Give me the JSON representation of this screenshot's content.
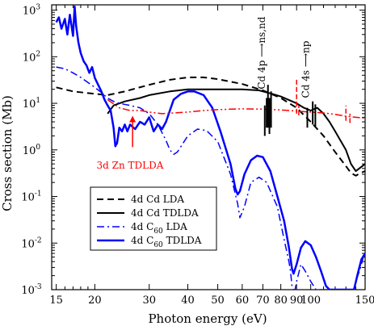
{
  "chart_data": {
    "type": "line",
    "xlabel": "Photon energy (eV)",
    "ylabel": "Cross section (Mb)",
    "xscale": "log",
    "yscale": "log",
    "xlim": [
      14.5,
      150
    ],
    "ylim": [
      0.001,
      1300
    ],
    "x_ticks": [
      {
        "v": 15,
        "label": "15"
      },
      {
        "v": 20,
        "label": "20"
      },
      {
        "v": 30,
        "label": "30"
      },
      {
        "v": 40,
        "label": "40"
      },
      {
        "v": 50,
        "label": "50"
      },
      {
        "v": 60,
        "label": "60"
      },
      {
        "v": 70,
        "label": "70"
      },
      {
        "v": 80,
        "label": "80"
      },
      {
        "v": 90,
        "label": "90"
      },
      {
        "v": 100,
        "label": "100"
      },
      {
        "v": 150,
        "label": "150"
      }
    ],
    "y_ticks": [
      {
        "v": 0.001,
        "base": "10",
        "exp": "-3"
      },
      {
        "v": 0.01,
        "base": "10",
        "exp": "-2"
      },
      {
        "v": 0.1,
        "base": "10",
        "exp": "-1"
      },
      {
        "v": 1,
        "base": "10",
        "exp": "0"
      },
      {
        "v": 10,
        "base": "10",
        "exp": "1"
      },
      {
        "v": 100,
        "base": "10",
        "exp": "2"
      },
      {
        "v": 1000,
        "base": "10",
        "exp": "3"
      }
    ],
    "grid": false,
    "legend_position": "lower-left",
    "legend": [
      {
        "series": "cd_lda",
        "sub": "",
        "pre": "4d Cd LDA",
        "post": ""
      },
      {
        "series": "cd_tdlda",
        "sub": "",
        "pre": "4d Cd TDLDA",
        "post": ""
      },
      {
        "series": "c60_lda",
        "pre": "4d C",
        "sub": "60",
        "post": " LDA"
      },
      {
        "series": "c60_tdlda",
        "pre": "4d C",
        "sub": "60",
        "post": " TDLDA"
      }
    ],
    "series": [
      {
        "id": "cd_lda",
        "color": "#000000",
        "style": "dashed",
        "width": 2,
        "points": [
          [
            15,
            22
          ],
          [
            17,
            18
          ],
          [
            20,
            16
          ],
          [
            22,
            15
          ],
          [
            25,
            18
          ],
          [
            30,
            25
          ],
          [
            35,
            32
          ],
          [
            40,
            36
          ],
          [
            45,
            36
          ],
          [
            50,
            33
          ],
          [
            60,
            26
          ],
          [
            70,
            19
          ],
          [
            80,
            13
          ],
          [
            90,
            8
          ],
          [
            100,
            4
          ],
          [
            110,
            2
          ],
          [
            120,
            0.9
          ],
          [
            130,
            0.45
          ],
          [
            135,
            0.32
          ],
          [
            140,
            0.28
          ],
          [
            145,
            0.32
          ],
          [
            150,
            0.35
          ]
        ]
      },
      {
        "id": "cd_tdlda",
        "color": "#000000",
        "style": "solid",
        "width": 2,
        "points": [
          [
            22,
            6
          ],
          [
            23,
            9
          ],
          [
            25,
            11
          ],
          [
            28,
            13
          ],
          [
            30,
            15
          ],
          [
            35,
            18
          ],
          [
            40,
            20
          ],
          [
            50,
            20
          ],
          [
            60,
            20
          ],
          [
            68,
            19
          ],
          [
            70,
            18
          ],
          [
            75,
            16
          ],
          [
            80,
            14
          ],
          [
            90,
            10
          ],
          [
            95,
            8
          ],
          [
            100,
            7
          ],
          [
            105,
            8
          ],
          [
            110,
            6
          ],
          [
            115,
            4
          ],
          [
            120,
            2.5
          ],
          [
            130,
            1
          ],
          [
            135,
            0.5
          ],
          [
            140,
            0.35
          ],
          [
            150,
            0.5
          ]
        ]
      },
      {
        "id": "c60_lda",
        "color": "#0000ff",
        "style": "dashdot",
        "width": 1.5,
        "points": [
          [
            15,
            60
          ],
          [
            16,
            55
          ],
          [
            17,
            45
          ],
          [
            18,
            36
          ],
          [
            19,
            28
          ],
          [
            20,
            22
          ],
          [
            21,
            17
          ],
          [
            22,
            13
          ],
          [
            23,
            11
          ],
          [
            24,
            10
          ],
          [
            26,
            9
          ],
          [
            28,
            8
          ],
          [
            30,
            6
          ],
          [
            32,
            3.5
          ],
          [
            34,
            1.6
          ],
          [
            35,
            1
          ],
          [
            36,
            0.8
          ],
          [
            37,
            0.9
          ],
          [
            40,
            2
          ],
          [
            43,
            2.8
          ],
          [
            46,
            2.6
          ],
          [
            50,
            1.5
          ],
          [
            55,
            0.3
          ],
          [
            58,
            0.07
          ],
          [
            59,
            0.035
          ],
          [
            61,
            0.06
          ],
          [
            64,
            0.2
          ],
          [
            68,
            0.26
          ],
          [
            72,
            0.2
          ],
          [
            78,
            0.06
          ],
          [
            82,
            0.012
          ],
          [
            85,
            0.004
          ],
          [
            86,
            0.0025
          ],
          [
            87,
            0.0012
          ],
          [
            88,
            0.001
          ],
          [
            89,
            0.001
          ],
          [
            90,
            0.0015
          ],
          [
            93,
            0.0035
          ],
          [
            96,
            0.0025
          ],
          [
            100,
            0.0015
          ],
          [
            104,
            0.001
          ],
          [
            138,
            0.001
          ],
          [
            140,
            0.0015
          ],
          [
            145,
            0.003
          ],
          [
            148,
            0.005
          ],
          [
            150,
            0.006
          ]
        ]
      },
      {
        "id": "c60_tdlda",
        "color": "#0000ff",
        "style": "solid",
        "width": 2.5,
        "points": [
          [
            15,
            550
          ],
          [
            15.3,
            700
          ],
          [
            15.6,
            400
          ],
          [
            16,
            650
          ],
          [
            16.3,
            300
          ],
          [
            16.6,
            800
          ],
          [
            17,
            280
          ],
          [
            17.2,
            1200
          ],
          [
            17.4,
            450
          ],
          [
            17.7,
            200
          ],
          [
            18,
            120
          ],
          [
            18.4,
            80
          ],
          [
            18.8,
            65
          ],
          [
            19.2,
            45
          ],
          [
            19.6,
            60
          ],
          [
            20,
            35
          ],
          [
            20.5,
            25
          ],
          [
            21,
            18
          ],
          [
            21.5,
            12
          ],
          [
            22,
            9
          ],
          [
            22.5,
            7
          ],
          [
            23,
            3
          ],
          [
            23.3,
            1.2
          ],
          [
            23.6,
            1.4
          ],
          [
            24,
            3
          ],
          [
            24.5,
            2.5
          ],
          [
            25,
            3.5
          ],
          [
            25.5,
            2.5
          ],
          [
            26,
            3.5
          ],
          [
            27,
            2.8
          ],
          [
            28,
            4
          ],
          [
            29,
            3.5
          ],
          [
            30,
            5
          ],
          [
            31,
            2.5
          ],
          [
            32,
            3.5
          ],
          [
            33,
            2.8
          ],
          [
            34,
            4
          ],
          [
            35,
            7
          ],
          [
            36,
            12
          ],
          [
            38,
            16
          ],
          [
            40,
            18
          ],
          [
            42,
            18
          ],
          [
            45,
            15
          ],
          [
            48,
            8
          ],
          [
            51,
            2.5
          ],
          [
            55,
            0.5
          ],
          [
            57,
            0.15
          ],
          [
            58,
            0.11
          ],
          [
            59,
            0.13
          ],
          [
            61,
            0.3
          ],
          [
            64,
            0.6
          ],
          [
            67,
            0.75
          ],
          [
            70,
            0.7
          ],
          [
            74,
            0.35
          ],
          [
            78,
            0.1
          ],
          [
            82,
            0.03
          ],
          [
            85,
            0.008
          ],
          [
            87,
            0.0028
          ],
          [
            88,
            0.0022
          ],
          [
            90,
            0.0035
          ],
          [
            93,
            0.008
          ],
          [
            96,
            0.011
          ],
          [
            100,
            0.009
          ],
          [
            104,
            0.005
          ],
          [
            108,
            0.0025
          ],
          [
            112,
            0.0012
          ],
          [
            115,
            0.001
          ],
          [
            138,
            0.001
          ],
          [
            142,
            0.0022
          ],
          [
            146,
            0.0045
          ],
          [
            150,
            0.006
          ]
        ]
      },
      {
        "id": "zn_tdlda",
        "color": "#ff0000",
        "style": "dashdotdot",
        "width": 1.5,
        "points": [
          [
            22,
            12
          ],
          [
            24,
            8
          ],
          [
            26,
            7
          ],
          [
            28,
            7
          ],
          [
            30,
            6.5
          ],
          [
            33,
            6
          ],
          [
            36,
            6.2
          ],
          [
            40,
            6.5
          ],
          [
            45,
            7
          ],
          [
            50,
            7.3
          ],
          [
            55,
            7.5
          ],
          [
            60,
            7.6
          ],
          [
            70,
            7.5
          ],
          [
            80,
            7.2
          ],
          [
            90,
            6.8
          ],
          [
            100,
            6.5
          ],
          [
            110,
            6.2
          ],
          [
            120,
            5.8
          ],
          [
            130,
            5.3
          ],
          [
            140,
            5
          ],
          [
            150,
            4.8
          ]
        ]
      }
    ],
    "resonances": [
      {
        "color": "#000000",
        "width": 2,
        "spikes": [
          [
            71,
            2,
            9
          ],
          [
            72,
            3,
            13
          ],
          [
            72.7,
            3,
            25
          ],
          [
            73.5,
            2.2,
            13
          ],
          [
            74.4,
            3,
            18
          ]
        ]
      },
      {
        "color": "#000000",
        "width": 2,
        "spikes": [
          [
            97.5,
            3,
            8
          ],
          [
            101.5,
            3.5,
            11
          ],
          [
            103.5,
            3.2,
            9.5
          ]
        ]
      },
      {
        "color": "#ff0000",
        "width": 1.5,
        "dashed": true,
        "spikes": [
          [
            90,
            6,
            35
          ],
          [
            91.5,
            5.5,
            9
          ]
        ]
      },
      {
        "color": "#ff0000",
        "width": 1.5,
        "dashed": true,
        "spikes": [
          [
            130,
            4.2,
            9
          ],
          [
            134,
            3.8,
            6
          ]
        ]
      }
    ],
    "annotations": [
      {
        "text": "Cd 4p",
        "arrow_to": "ns,nd",
        "x": 72,
        "y": 20,
        "color": "#000000"
      },
      {
        "text": "Cd 4s",
        "arrow_to": "np",
        "x": 100,
        "y": 13,
        "color": "#000000"
      }
    ],
    "zn_label": {
      "text": "3d Zn TDLDA",
      "color": "#ff0000",
      "label_x": 26,
      "label_y": 0.4,
      "arrow_x": 26.5,
      "arrow_tail_y": 1.15,
      "arrow_head_y": 5.4
    }
  }
}
